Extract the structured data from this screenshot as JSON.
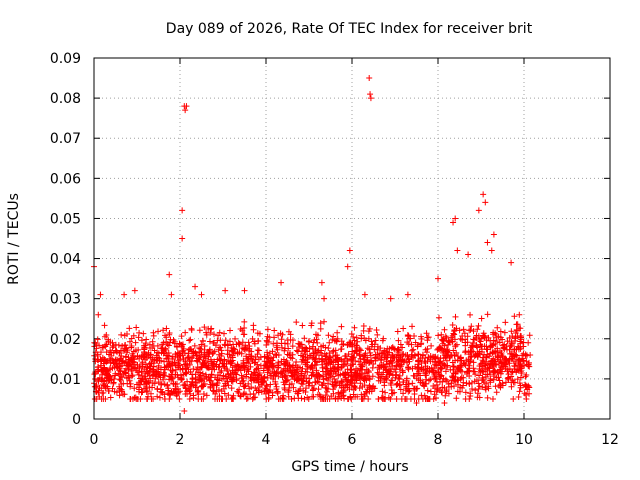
{
  "chart_data": {
    "type": "scatter",
    "title": "Day 089 of 2026, Rate Of TEC Index for receiver brit",
    "xlabel": "GPS time / hours",
    "ylabel": "ROTI / TECUs",
    "xlim": [
      0,
      12
    ],
    "ylim": [
      0,
      0.09
    ],
    "xticks": [
      "0",
      "2",
      "4",
      "6",
      "8",
      "10",
      "12"
    ],
    "yticks": [
      "0",
      "0.01",
      "0.02",
      "0.03",
      "0.04",
      "0.05",
      "0.06",
      "0.07",
      "0.08",
      "0.09"
    ],
    "grid": true,
    "marker": "plus",
    "color": "#ff0000",
    "series": [
      {
        "name": "ROTI",
        "notable_points": [
          [
            0.0,
            0.038
          ],
          [
            0.1,
            0.026
          ],
          [
            0.15,
            0.031
          ],
          [
            0.7,
            0.031
          ],
          [
            0.95,
            0.032
          ],
          [
            1.75,
            0.036
          ],
          [
            1.8,
            0.031
          ],
          [
            2.05,
            0.052
          ],
          [
            2.05,
            0.045
          ],
          [
            2.1,
            0.078
          ],
          [
            2.12,
            0.077
          ],
          [
            2.15,
            0.078
          ],
          [
            2.1,
            0.002
          ],
          [
            2.35,
            0.033
          ],
          [
            2.5,
            0.031
          ],
          [
            3.05,
            0.032
          ],
          [
            3.5,
            0.032
          ],
          [
            4.35,
            0.034
          ],
          [
            5.3,
            0.034
          ],
          [
            5.35,
            0.03
          ],
          [
            5.9,
            0.038
          ],
          [
            5.95,
            0.042
          ],
          [
            6.4,
            0.085
          ],
          [
            6.42,
            0.081
          ],
          [
            6.44,
            0.08
          ],
          [
            6.3,
            0.031
          ],
          [
            6.9,
            0.03
          ],
          [
            7.3,
            0.031
          ],
          [
            7.5,
            0.004
          ],
          [
            8.0,
            0.035
          ],
          [
            8.15,
            0.004
          ],
          [
            8.35,
            0.049
          ],
          [
            8.4,
            0.05
          ],
          [
            8.45,
            0.042
          ],
          [
            8.7,
            0.041
          ],
          [
            8.95,
            0.052
          ],
          [
            9.05,
            0.056
          ],
          [
            9.1,
            0.054
          ],
          [
            9.15,
            0.044
          ],
          [
            9.3,
            0.046
          ],
          [
            9.25,
            0.042
          ],
          [
            9.7,
            0.039
          ],
          [
            9.75,
            0.005
          ]
        ]
      }
    ],
    "data_x_range": [
      0,
      10.15
    ],
    "bulk_y_range": [
      0.005,
      0.025
    ]
  }
}
